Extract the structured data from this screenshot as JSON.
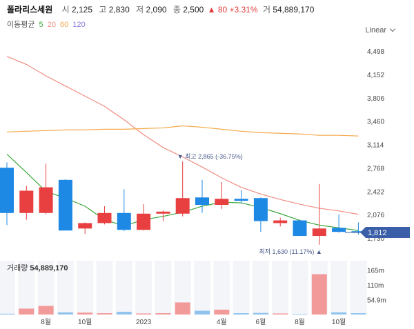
{
  "header": {
    "name": "폴라리스세원",
    "open_label": "시",
    "open": "2,125",
    "high_label": "고",
    "high": "2,830",
    "low_label": "저",
    "low": "2,090",
    "close_label": "종",
    "close": "2,500",
    "change": "▲ 80 +3.31%",
    "volume_label": "거",
    "volume": "54,889,170"
  },
  "ma_legend": {
    "title": "이동평균",
    "items": [
      {
        "label": "5",
        "color": "#3aa83a"
      },
      {
        "label": "20",
        "color": "#f08c80"
      },
      {
        "label": "60",
        "color": "#f5a84a"
      },
      {
        "label": "120",
        "color": "#8a7ad8"
      }
    ]
  },
  "scale_mode": "Linear",
  "colors": {
    "up": "#e84040",
    "down": "#1e88e5",
    "current": "#3a5fa8"
  },
  "chart_data": {
    "type": "candlestick",
    "price_axis": {
      "ticks": [
        "4,498",
        "4,152",
        "3,806",
        "3,460",
        "3,114",
        "2,768",
        "2,422",
        "2,076",
        "1,730"
      ]
    },
    "price_range": [
      1730,
      4498
    ],
    "candles": [
      {
        "o": 2770,
        "h": 2850,
        "l": 1920,
        "c": 2100
      },
      {
        "o": 2100,
        "h": 2500,
        "l": 2000,
        "c": 2430
      },
      {
        "o": 2100,
        "h": 2830,
        "l": 2080,
        "c": 2480
      },
      {
        "o": 2590,
        "h": 2600,
        "l": 1840,
        "c": 1840
      },
      {
        "o": 1870,
        "h": 1960,
        "l": 1790,
        "c": 1950
      },
      {
        "o": 1950,
        "h": 2200,
        "l": 1930,
        "c": 2100
      },
      {
        "o": 2100,
        "h": 2450,
        "l": 1830,
        "c": 1850
      },
      {
        "o": 1850,
        "h": 2230,
        "l": 1840,
        "c": 2090
      },
      {
        "o": 2090,
        "h": 2140,
        "l": 1980,
        "c": 2120
      },
      {
        "o": 2090,
        "h": 2865,
        "l": 2050,
        "c": 2320
      },
      {
        "o": 2330,
        "h": 2590,
        "l": 2100,
        "c": 2220
      },
      {
        "o": 2220,
        "h": 2560,
        "l": 2160,
        "c": 2310
      },
      {
        "o": 2310,
        "h": 2440,
        "l": 2240,
        "c": 2280
      },
      {
        "o": 2320,
        "h": 2330,
        "l": 1820,
        "c": 1980
      },
      {
        "o": 1950,
        "h": 2030,
        "l": 1900,
        "c": 1990
      },
      {
        "o": 1990,
        "h": 2000,
        "l": 1760,
        "c": 1760
      },
      {
        "o": 1760,
        "h": 2530,
        "l": 1630,
        "c": 1870
      },
      {
        "o": 1880,
        "h": 2080,
        "l": 1810,
        "c": 1820
      },
      {
        "o": 1830,
        "h": 1960,
        "l": 1780,
        "c": 1812
      }
    ],
    "ma": [
      {
        "label": "5",
        "color": "#3aa83a",
        "values": [
          2970,
          2700,
          2420,
          2320,
          2200,
          2000,
          1910,
          2000,
          2050,
          2110,
          2200,
          2260,
          2250,
          2180,
          2090,
          1990,
          1920,
          1880,
          1840
        ]
      },
      {
        "label": "20",
        "color": "#f08c80",
        "values": [
          4420,
          4300,
          4130,
          3980,
          3830,
          3680,
          3480,
          3260,
          3070,
          2930,
          2780,
          2620,
          2480,
          2380,
          2300,
          2230,
          2170,
          2130,
          2080
        ]
      },
      {
        "label": "60",
        "color": "#f5a84a",
        "values": [
          3300,
          3310,
          3320,
          3330,
          3330,
          3340,
          3340,
          3350,
          3360,
          3390,
          3370,
          3340,
          3310,
          3290,
          3280,
          3270,
          3250,
          3250,
          3240
        ]
      }
    ],
    "max_annotation": {
      "candle": 9,
      "text": "▼ 최고 2,865 (-36.75%)"
    },
    "min_annotation": {
      "candle": 16,
      "text": "최저 1,630 (11.17%) ▲"
    },
    "current_price": "1,812",
    "current_value": 1812,
    "volume_title": "거래량",
    "volume_value": "54,889,170",
    "volume_axis": {
      "ticks": [
        "165m",
        "110m",
        "54.9m"
      ],
      "values": [
        165,
        110,
        54.9
      ]
    },
    "volume_range": [
      0,
      200
    ],
    "volumes": [
      {
        "v": 3,
        "up": false
      },
      {
        "v": 22,
        "up": true
      },
      {
        "v": 32,
        "up": true
      },
      {
        "v": 8,
        "up": false
      },
      {
        "v": 7,
        "up": true
      },
      {
        "v": 5,
        "up": true
      },
      {
        "v": 10,
        "up": false
      },
      {
        "v": 4,
        "up": true
      },
      {
        "v": 5,
        "up": true
      },
      {
        "v": 45,
        "up": true
      },
      {
        "v": 14,
        "up": false
      },
      {
        "v": 18,
        "up": true
      },
      {
        "v": 5,
        "up": false
      },
      {
        "v": 6,
        "up": false
      },
      {
        "v": 4,
        "up": true
      },
      {
        "v": 2,
        "up": false
      },
      {
        "v": 150,
        "up": true
      },
      {
        "v": 8,
        "up": false
      },
      {
        "v": 5,
        "up": false
      }
    ],
    "x_labels": [
      {
        "candle": 2,
        "text": "8월"
      },
      {
        "candle": 4,
        "text": "10월"
      },
      {
        "candle": 7,
        "text": "2023"
      },
      {
        "candle": 11,
        "text": "4월"
      },
      {
        "candle": 13,
        "text": "6월"
      },
      {
        "candle": 15,
        "text": "8월"
      },
      {
        "candle": 17,
        "text": "10월"
      }
    ]
  }
}
